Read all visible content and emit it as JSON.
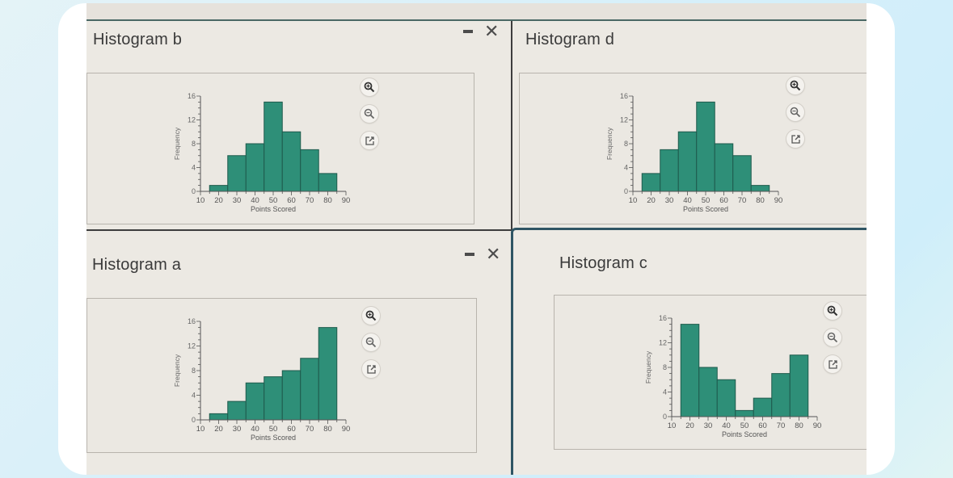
{
  "colors": {
    "bar_fill": "#2e8f78",
    "bar_stroke": "#1e5a4c",
    "axis": "#555555",
    "panel_bg": "#ece9e3",
    "window_border_accent": "#3e6f80"
  },
  "controls": {
    "minimize_glyph": "",
    "close_glyph": "✕"
  },
  "tool_icons": [
    "zoom-in-icon",
    "zoom-out-icon",
    "open-external-icon"
  ],
  "panels": {
    "b": {
      "title": "Histogram b"
    },
    "d": {
      "title": "Histogram d"
    },
    "a": {
      "title": "Histogram a"
    },
    "c": {
      "title": "Histogram c"
    }
  },
  "chart_data": [
    {
      "id": "b",
      "type": "bar",
      "title": "Histogram b",
      "xlabel": "Points Scored",
      "ylabel": "Frequency",
      "bin_edges": [
        15,
        25,
        35,
        45,
        55,
        65,
        75,
        85
      ],
      "categories": [
        "15-25",
        "25-35",
        "35-45",
        "45-55",
        "55-65",
        "65-75",
        "75-85"
      ],
      "values": [
        1,
        6,
        8,
        15,
        10,
        7,
        3
      ],
      "xticks": [
        10,
        20,
        30,
        40,
        50,
        60,
        70,
        80,
        90
      ],
      "yticks": [
        0,
        4,
        8,
        12,
        16
      ],
      "xlim": [
        10,
        90
      ],
      "ylim": [
        0,
        16
      ],
      "grid": false
    },
    {
      "id": "d",
      "type": "bar",
      "title": "Histogram d",
      "xlabel": "Points Scored",
      "ylabel": "Frequency",
      "bin_edges": [
        15,
        25,
        35,
        45,
        55,
        65,
        75,
        85
      ],
      "categories": [
        "15-25",
        "25-35",
        "35-45",
        "45-55",
        "55-65",
        "65-75",
        "75-85"
      ],
      "values": [
        3,
        7,
        10,
        15,
        8,
        6,
        1
      ],
      "xticks": [
        10,
        20,
        30,
        40,
        50,
        60,
        70,
        80,
        90
      ],
      "yticks": [
        0,
        4,
        8,
        12,
        16
      ],
      "xlim": [
        10,
        90
      ],
      "ylim": [
        0,
        16
      ],
      "grid": false
    },
    {
      "id": "a",
      "type": "bar",
      "title": "Histogram a",
      "xlabel": "Points Scored",
      "ylabel": "Frequency",
      "bin_edges": [
        15,
        25,
        35,
        45,
        55,
        65,
        75,
        85
      ],
      "categories": [
        "15-25",
        "25-35",
        "35-45",
        "45-55",
        "55-65",
        "65-75",
        "75-85"
      ],
      "values": [
        1,
        3,
        6,
        7,
        8,
        10,
        15
      ],
      "xticks": [
        10,
        20,
        30,
        40,
        50,
        60,
        70,
        80,
        90
      ],
      "yticks": [
        0,
        4,
        8,
        12,
        16
      ],
      "xlim": [
        10,
        90
      ],
      "ylim": [
        0,
        16
      ],
      "grid": false
    },
    {
      "id": "c",
      "type": "bar",
      "title": "Histogram c",
      "xlabel": "Points Scored",
      "ylabel": "Frequency",
      "bin_edges": [
        15,
        25,
        35,
        45,
        55,
        65,
        75,
        85
      ],
      "categories": [
        "15-25",
        "25-35",
        "35-45",
        "45-55",
        "55-65",
        "65-75",
        "75-85"
      ],
      "values": [
        15,
        8,
        6,
        1,
        3,
        7,
        10
      ],
      "xticks": [
        10,
        20,
        30,
        40,
        50,
        60,
        70,
        80,
        90
      ],
      "yticks": [
        0,
        4,
        8,
        12,
        16
      ],
      "xlim": [
        10,
        90
      ],
      "ylim": [
        0,
        16
      ],
      "grid": false
    }
  ]
}
